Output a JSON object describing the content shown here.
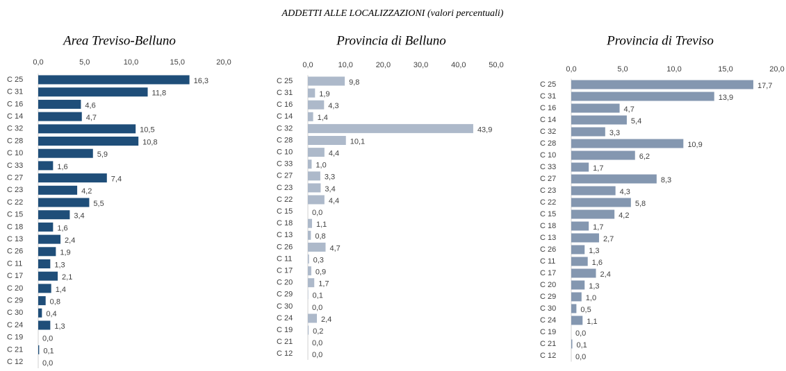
{
  "title": "ADDETTI ALLE LOCALIZZAZIONI (valori percentuali)",
  "chart_data": [
    {
      "type": "bar",
      "orientation": "horizontal",
      "title": "Area Treviso-Belluno",
      "color": "#1f4e79",
      "categories": [
        "C 25",
        "C 31",
        "C 16",
        "C 14",
        "C 32",
        "C 28",
        "C 10",
        "C 33",
        "C 27",
        "C 23",
        "C 22",
        "C 15",
        "C 18",
        "C 13",
        "C 26",
        "C 11",
        "C 17",
        "C 20",
        "C 29",
        "C 30",
        "C 24",
        "C 19",
        "C 21",
        "C 12"
      ],
      "values": [
        16.3,
        11.8,
        4.6,
        4.7,
        10.5,
        10.8,
        5.9,
        1.6,
        7.4,
        4.2,
        5.5,
        3.4,
        1.6,
        2.4,
        1.9,
        1.3,
        2.1,
        1.4,
        0.8,
        0.4,
        1.3,
        0.0,
        0.1,
        0.0
      ],
      "value_labels": [
        "16,3",
        "11,8",
        "4,6",
        "4,7",
        "10,5",
        "10,8",
        "5,9",
        "1,6",
        "7,4",
        "4,2",
        "5,5",
        "3,4",
        "1,6",
        "2,4",
        "1,9",
        "1,3",
        "2,1",
        "1,4",
        "0,8",
        "0,4",
        "1,3",
        "0,0",
        "0,1",
        "0,0"
      ],
      "xlim": [
        0,
        20
      ],
      "xticks": [
        {
          "value": 0,
          "label": "0,0"
        },
        {
          "value": 5,
          "label": "5,0"
        },
        {
          "value": 10,
          "label": "10,0"
        },
        {
          "value": 15,
          "label": "15,0"
        },
        {
          "value": 20,
          "label": "20,0"
        }
      ]
    },
    {
      "type": "bar",
      "orientation": "horizontal",
      "title": "Provincia di Belluno",
      "color": "#adb9ca",
      "categories": [
        "C 25",
        "C 31",
        "C 16",
        "C 14",
        "C 32",
        "C 28",
        "C 10",
        "C 33",
        "C 27",
        "C 23",
        "C 22",
        "C 15",
        "C 18",
        "C 13",
        "C 26",
        "C 11",
        "C 17",
        "C 20",
        "C 29",
        "C 30",
        "C 24",
        "C 19",
        "C 21",
        "C 12"
      ],
      "values": [
        9.8,
        1.9,
        4.3,
        1.4,
        43.9,
        10.1,
        4.4,
        1.0,
        3.3,
        3.4,
        4.4,
        0.0,
        1.1,
        0.8,
        4.7,
        0.3,
        0.9,
        1.7,
        0.1,
        0.0,
        2.4,
        0.2,
        0.0,
        0.0
      ],
      "value_labels": [
        "9,8",
        "1,9",
        "4,3",
        "1,4",
        "43,9",
        "10,1",
        "4,4",
        "1,0",
        "3,3",
        "3,4",
        "4,4",
        "0,0",
        "1,1",
        "0,8",
        "4,7",
        "0,3",
        "0,9",
        "1,7",
        "0,1",
        "0,0",
        "2,4",
        "0,2",
        "0,0",
        "0,0"
      ],
      "xlim": [
        0,
        50
      ],
      "xticks": [
        {
          "value": 0,
          "label": "0,0"
        },
        {
          "value": 10,
          "label": "10,0"
        },
        {
          "value": 20,
          "label": "20,0"
        },
        {
          "value": 30,
          "label": "30,0"
        },
        {
          "value": 40,
          "label": "40,0"
        },
        {
          "value": 50,
          "label": "50,0"
        }
      ]
    },
    {
      "type": "bar",
      "orientation": "horizontal",
      "title": "Provincia di Treviso",
      "color": "#8497b0",
      "categories": [
        "C 25",
        "C 31",
        "C 16",
        "C 14",
        "C 32",
        "C 28",
        "C 10",
        "C 33",
        "C 27",
        "C 23",
        "C 22",
        "C 15",
        "C 18",
        "C 13",
        "C 26",
        "C 11",
        "C 17",
        "C 20",
        "C 29",
        "C 30",
        "C 24",
        "C 19",
        "C 21",
        "C 12"
      ],
      "values": [
        17.7,
        13.9,
        4.7,
        5.4,
        3.3,
        10.9,
        6.2,
        1.7,
        8.3,
        4.3,
        5.8,
        4.2,
        1.7,
        2.7,
        1.3,
        1.6,
        2.4,
        1.3,
        1.0,
        0.5,
        1.1,
        0.0,
        0.1,
        0.0
      ],
      "value_labels": [
        "17,7",
        "13,9",
        "4,7",
        "5,4",
        "3,3",
        "10,9",
        "6,2",
        "1,7",
        "8,3",
        "4,3",
        "5,8",
        "4,2",
        "1,7",
        "2,7",
        "1,3",
        "1,6",
        "2,4",
        "1,3",
        "1,0",
        "0,5",
        "1,1",
        "0,0",
        "0,1",
        "0,0"
      ],
      "xlim": [
        0,
        20
      ],
      "xticks": [
        {
          "value": 0,
          "label": "0,0"
        },
        {
          "value": 5,
          "label": "5,0"
        },
        {
          "value": 10,
          "label": "10,0"
        },
        {
          "value": 15,
          "label": "15,0"
        },
        {
          "value": 20,
          "label": "20,0"
        }
      ]
    }
  ]
}
